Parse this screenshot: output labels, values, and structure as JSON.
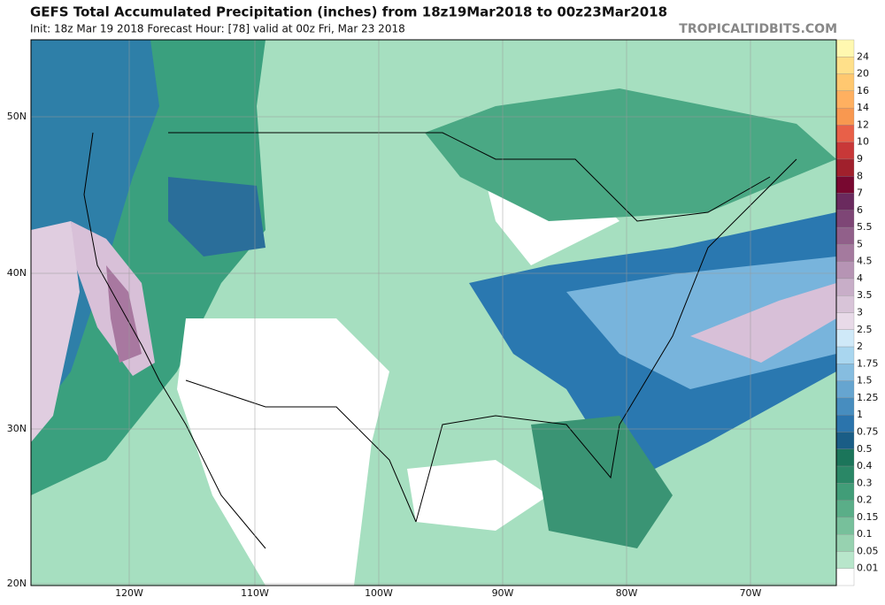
{
  "header": {
    "title": "GEFS Total Accumulated Precipitation (inches) from 18z19Mar2018 to 00z23Mar2018",
    "subtitle": "Init: 18z Mar 19 2018   Forecast Hour: [78]   valid at 00z Fri, Mar 23 2018",
    "source": "TROPICALTIDBITS.COM"
  },
  "colorbar": {
    "labels": [
      "24",
      "20",
      "16",
      "14",
      "12",
      "10",
      "9",
      "8",
      "7",
      "6",
      "5.5",
      "5",
      "4.5",
      "4",
      "3.5",
      "3",
      "2.5",
      "2",
      "1.75",
      "1.5",
      "1.25",
      "1",
      "0.75",
      "0.5",
      "0.4",
      "0.3",
      "0.2",
      "0.15",
      "0.1",
      "0.05",
      "0.01"
    ]
  },
  "map": {
    "lat_labels": [
      "50N",
      "40N",
      "30N",
      "20N"
    ],
    "lon_labels": [
      "120W",
      "110W",
      "100W",
      "90W",
      "80W",
      "70W"
    ]
  }
}
